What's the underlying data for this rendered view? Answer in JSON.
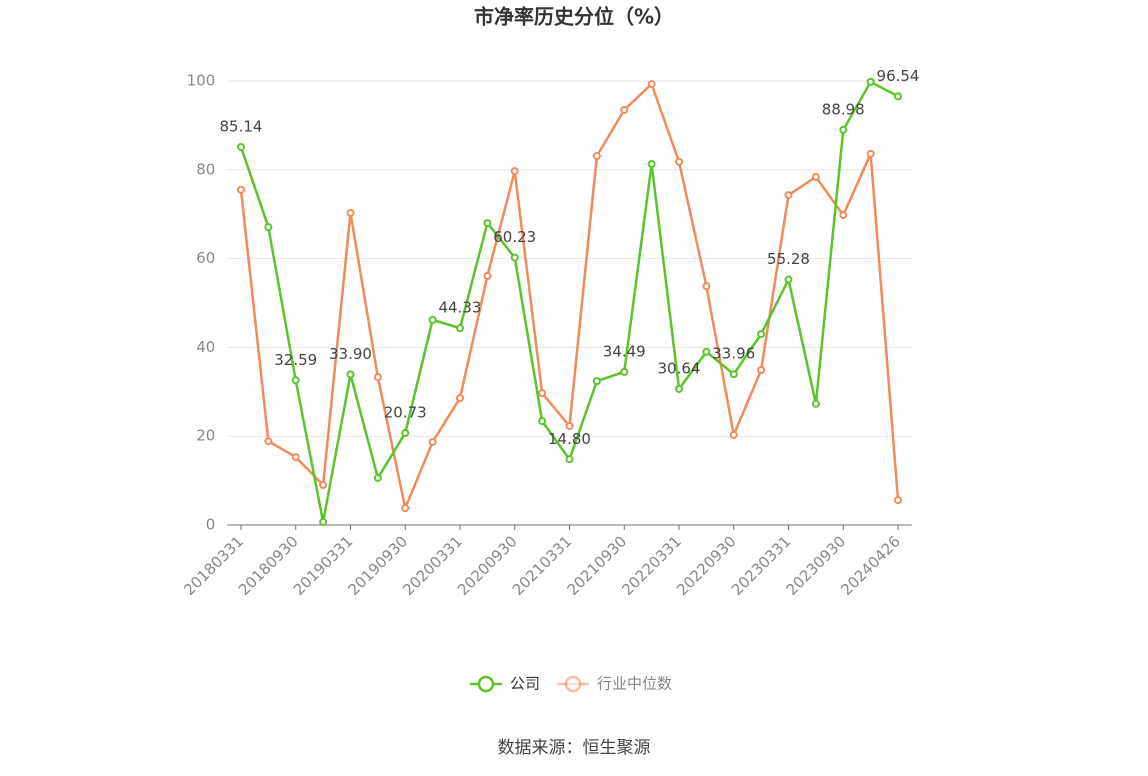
{
  "chart_data": {
    "type": "line",
    "title": "市净率历史分位（%）",
    "categories": [
      "20180331",
      null,
      "20180930",
      null,
      "20190331",
      null,
      "20190930",
      null,
      "20200331",
      null,
      "20200930",
      null,
      "20210331",
      null,
      "20210930",
      null,
      "20220331",
      null,
      "20220930",
      null,
      "20230331",
      null,
      "20230930",
      null,
      "20240426"
    ],
    "series": [
      {
        "name": "公司",
        "color": "#5ac42a",
        "values": [
          85.14,
          67.1,
          32.59,
          0.7,
          33.9,
          10.6,
          20.73,
          46.2,
          44.33,
          68.0,
          60.23,
          23.4,
          14.8,
          32.4,
          34.49,
          81.3,
          30.64,
          39.0,
          33.96,
          43.0,
          55.28,
          27.3,
          88.98,
          99.8,
          96.54
        ],
        "value_labels": [
          "85.14",
          null,
          "32.59",
          null,
          "33.90",
          null,
          "20.73",
          null,
          "44.33",
          null,
          "60.23",
          null,
          "14.80",
          null,
          "34.49",
          null,
          "30.64",
          null,
          "33.96",
          null,
          "55.28",
          null,
          "88.98",
          null,
          "96.54"
        ]
      },
      {
        "name": "行业中位数",
        "color": "#f28b5a",
        "values": [
          75.5,
          18.9,
          15.3,
          9.0,
          70.3,
          33.3,
          3.8,
          18.7,
          28.6,
          56.1,
          79.7,
          29.7,
          22.3,
          83.1,
          93.5,
          99.3,
          81.8,
          53.8,
          20.3,
          34.9,
          74.3,
          78.4,
          69.8,
          83.6,
          5.6
        ]
      }
    ],
    "ylim": [
      0,
      100
    ],
    "yticks": [
      0,
      20,
      40,
      60,
      80,
      100
    ],
    "grid": true,
    "source": "数据来源：恒生聚源"
  }
}
